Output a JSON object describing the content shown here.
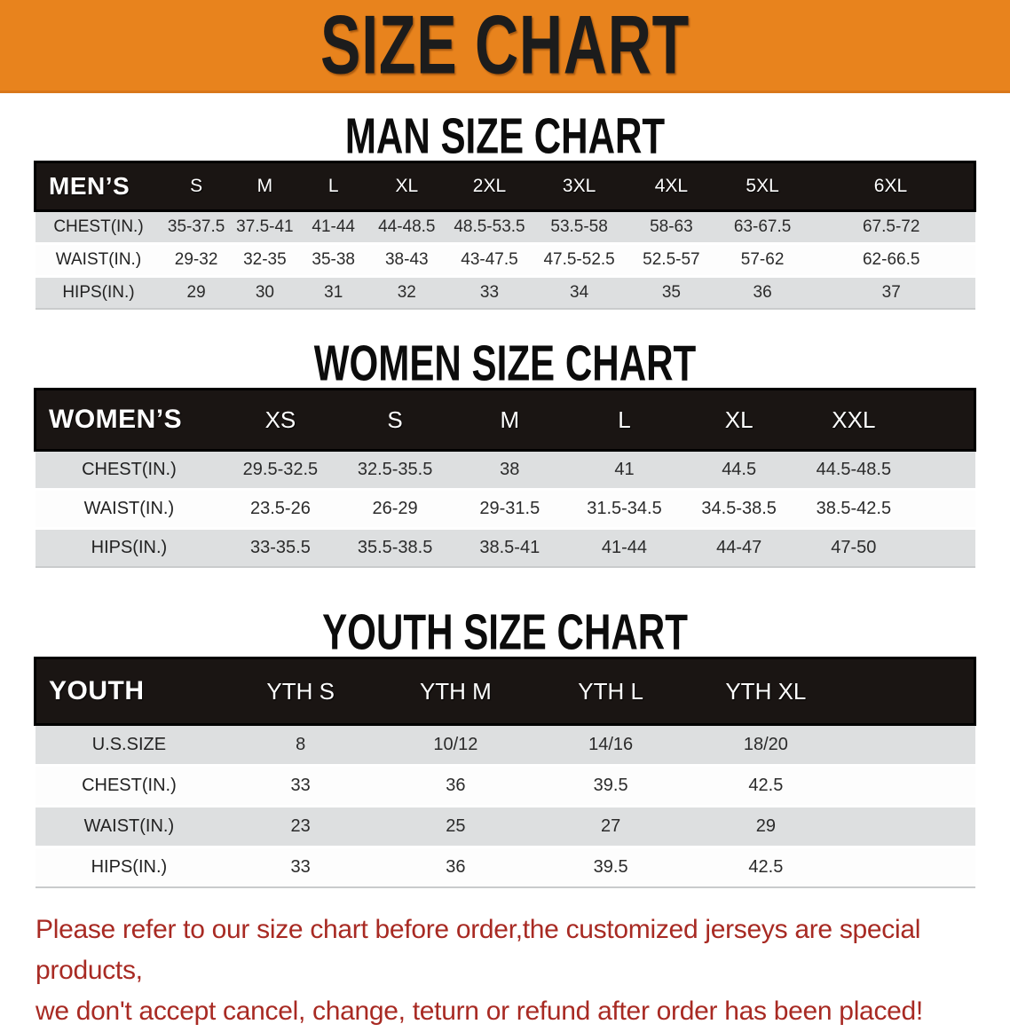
{
  "banner": {
    "title": "SIZE CHART"
  },
  "colors": {
    "banner_bg": "#E8831D",
    "header_bar_bg": "#1A1513",
    "row_alt_bg": "#DDDFE0",
    "disclaimer_text": "#A82A23"
  },
  "sections": [
    {
      "heading": "MAN SIZE CHART",
      "table": {
        "label": "MEN’S",
        "columns": [
          "S",
          "M",
          "L",
          "XL",
          "2XL",
          "3XL",
          "4XL",
          "5XL",
          "6XL"
        ],
        "rows": [
          {
            "label": "CHEST(IN.)",
            "values": [
              "35-37.5",
              "37.5-41",
              "41-44",
              "44-48.5",
              "48.5-53.5",
              "53.5-58",
              "58-63",
              "63-67.5",
              "67.5-72"
            ]
          },
          {
            "label": "WAIST(IN.)",
            "values": [
              "29-32",
              "32-35",
              "35-38",
              "38-43",
              "43-47.5",
              "47.5-52.5",
              "52.5-57",
              "57-62",
              "62-66.5"
            ]
          },
          {
            "label": "HIPS(IN.)",
            "values": [
              "29",
              "30",
              "31",
              "32",
              "33",
              "34",
              "35",
              "36",
              "37"
            ]
          }
        ]
      }
    },
    {
      "heading": "WOMEN SIZE CHART",
      "table": {
        "label": "WOMEN’S",
        "columns": [
          "XS",
          "S",
          "M",
          "L",
          "XL",
          "XXL"
        ],
        "filler": true,
        "rows": [
          {
            "label": "CHEST(IN.)",
            "values": [
              "29.5-32.5",
              "32.5-35.5",
              "38",
              "41",
              "44.5",
              "44.5-48.5"
            ]
          },
          {
            "label": "WAIST(IN.)",
            "values": [
              "23.5-26",
              "26-29",
              "29-31.5",
              "31.5-34.5",
              "34.5-38.5",
              "38.5-42.5"
            ]
          },
          {
            "label": "HIPS(IN.)",
            "values": [
              "33-35.5",
              "35.5-38.5",
              "38.5-41",
              "41-44",
              "44-47",
              "47-50"
            ]
          }
        ]
      }
    },
    {
      "heading": "YOUTH SIZE CHART",
      "table": {
        "label": "YOUTH",
        "columns": [
          "YTH S",
          "YTH M",
          "YTH L",
          "YTH XL"
        ],
        "filler": true,
        "rows": [
          {
            "label": "U.S.SIZE",
            "values": [
              "8",
              "10/12",
              "14/16",
              "18/20"
            ]
          },
          {
            "label": "CHEST(IN.)",
            "values": [
              "33",
              "36",
              "39.5",
              "42.5"
            ]
          },
          {
            "label": "WAIST(IN.)",
            "values": [
              "23",
              "25",
              "27",
              "29"
            ]
          },
          {
            "label": "HIPS(IN.)",
            "values": [
              "33",
              "36",
              "39.5",
              "42.5"
            ]
          }
        ]
      }
    }
  ],
  "disclaimer": {
    "lines": [
      "Please refer to our size chart before order,the customized jerseys are special products,",
      "we don't accept cancel, change, teturn or refund after order has been placed!"
    ]
  }
}
